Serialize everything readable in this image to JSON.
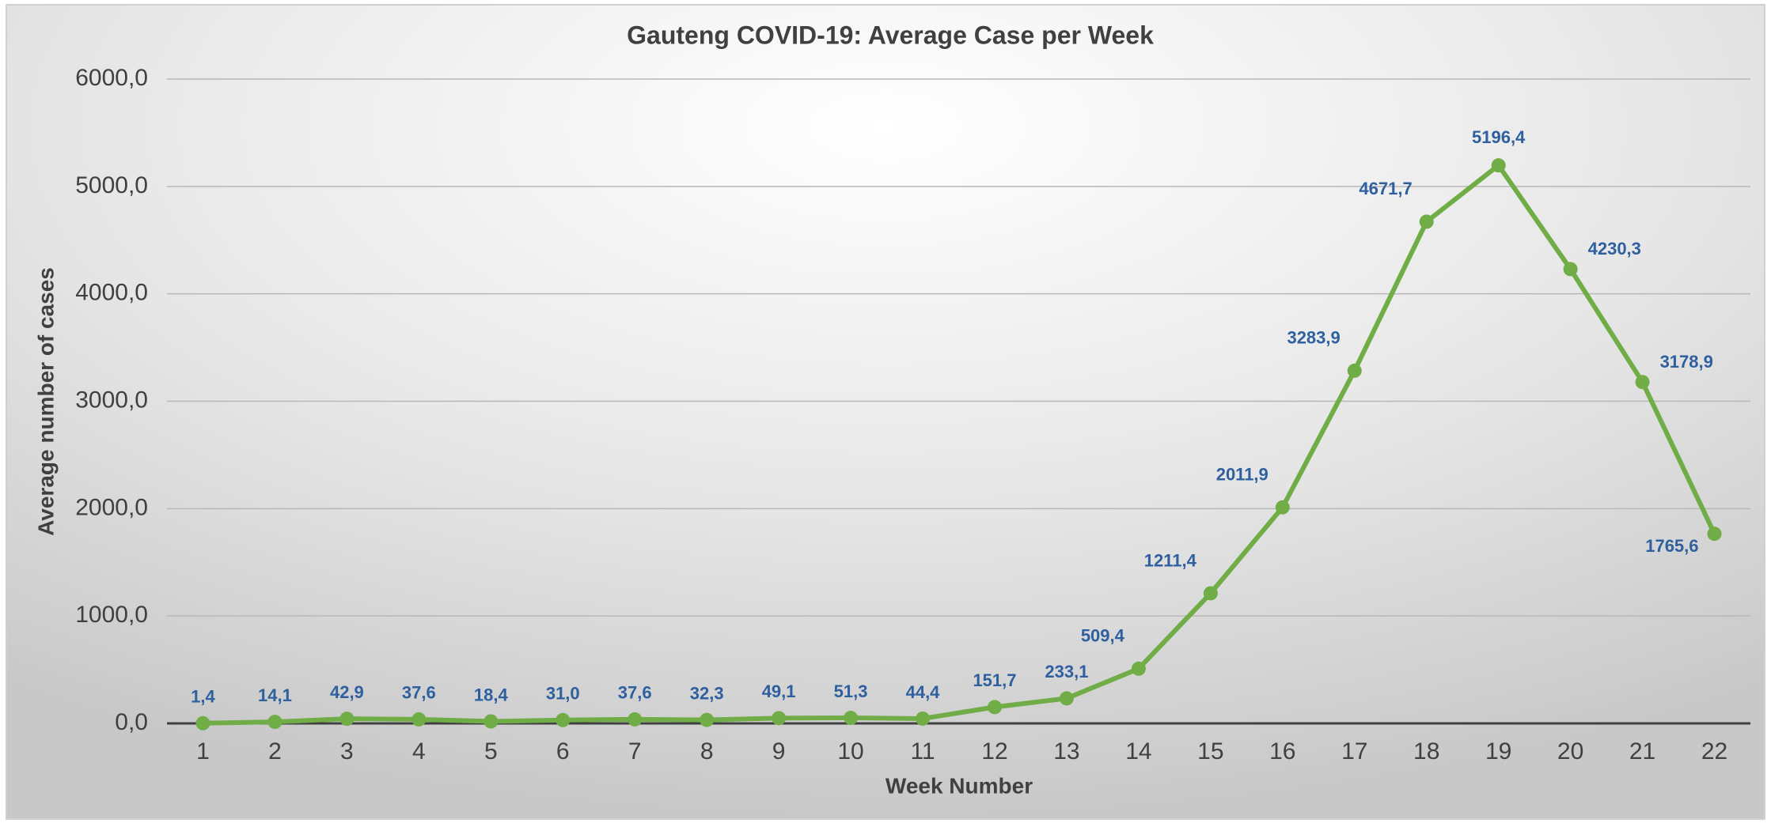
{
  "chart_data": {
    "type": "line",
    "title": "Gauteng COVID-19: Average Case per Week",
    "x_label": "Week Number",
    "y_label": "Average number of cases",
    "categories": [
      "1",
      "2",
      "3",
      "4",
      "5",
      "6",
      "7",
      "8",
      "9",
      "10",
      "11",
      "12",
      "13",
      "14",
      "15",
      "16",
      "17",
      "18",
      "19",
      "20",
      "21",
      "22"
    ],
    "series": [
      {
        "name": "Average Case per Week",
        "color": "#70ad47",
        "values": [
          1.4,
          14.1,
          42.9,
          37.6,
          18.4,
          31.0,
          37.6,
          32.3,
          49.1,
          51.3,
          44.4,
          151.7,
          233.1,
          509.4,
          1211.4,
          2011.9,
          3283.9,
          4671.7,
          5196.4,
          4230.3,
          3178.9,
          1765.6
        ],
        "value_labels": [
          "1,4",
          "14,1",
          "42,9",
          "37,6",
          "18,4",
          "31,0",
          "37,6",
          "32,3",
          "49,1",
          "51,3",
          "44,4",
          "151,7",
          "233,1",
          "509,4",
          "1211,4",
          "2011,9",
          "3283,9",
          "4671,7",
          "5196,4",
          "4230,3",
          "3178,9",
          "1765,6"
        ]
      }
    ],
    "ylim": [
      0,
      6000
    ],
    "yticks": [
      {
        "value": 0,
        "label": "0,0"
      },
      {
        "value": 1000,
        "label": "1000,0"
      },
      {
        "value": 2000,
        "label": "2000,0"
      },
      {
        "value": 3000,
        "label": "3000,0"
      },
      {
        "value": 4000,
        "label": "4000,0"
      },
      {
        "value": 5000,
        "label": "5000,0"
      },
      {
        "value": 6000,
        "label": "6000,0"
      }
    ],
    "grid": true,
    "label_color": "#2e5f9e"
  }
}
